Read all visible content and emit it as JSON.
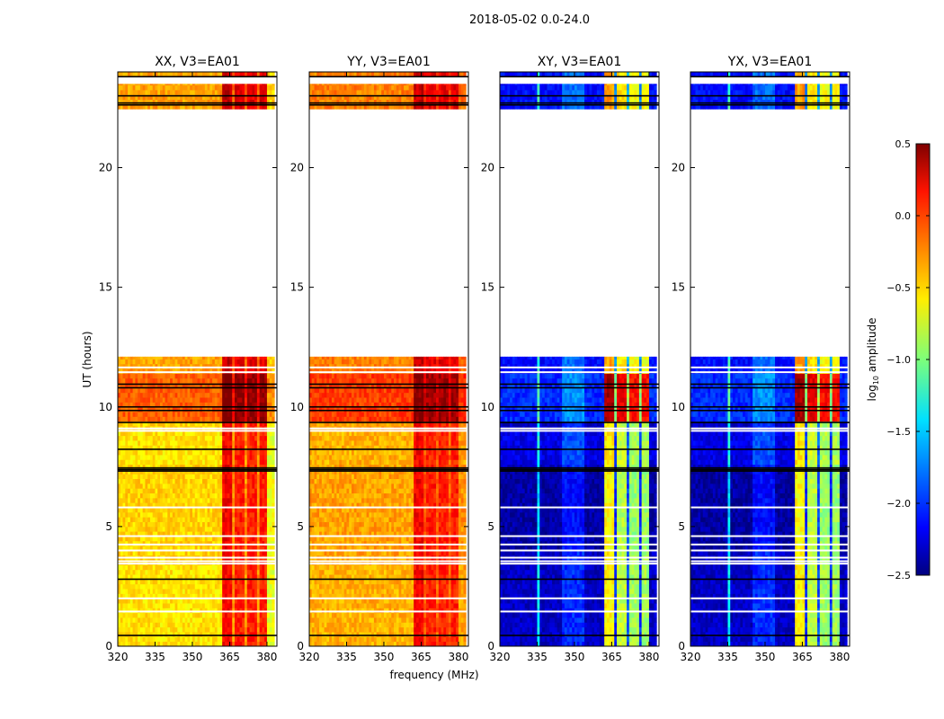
{
  "chart_data": {
    "type": "heatmap",
    "title": "2018-05-02 0.0-24.0",
    "xlabel": "frequency (MHz)",
    "ylabel": "UT (hours)",
    "xlim": [
      320,
      384
    ],
    "ylim": [
      0,
      24
    ],
    "xticks": [
      320,
      335,
      350,
      365,
      380
    ],
    "yticks": [
      0,
      5,
      10,
      15,
      20
    ],
    "colormap": "jet",
    "colorbar": {
      "label": "log",
      "label_sub": "10",
      "label_rest": " amplitude",
      "range": [
        -2.5,
        0.5
      ],
      "ticks": [
        "0.5",
        "0.0",
        "−0.5",
        "−1.0",
        "−1.5",
        "−2.0",
        "−2.5"
      ],
      "tick_values": [
        0.5,
        0.0,
        -0.5,
        -1.0,
        -1.5,
        -2.0,
        -2.5
      ]
    },
    "data_ut_ranges": [
      [
        0,
        12.1
      ],
      [
        22.45,
        23.5
      ],
      [
        23.8,
        24
      ]
    ],
    "flagged_ut_lines": [
      23.8,
      23.0,
      22.7,
      22.62,
      10.95,
      10.8,
      10.0,
      9.85,
      9.35,
      8.23,
      7.45,
      7.38,
      7.32,
      2.8,
      0.45
    ],
    "blank_ut_lines": [
      11.65,
      11.45,
      9.1,
      9.0,
      5.8,
      4.6,
      4.25,
      4.0,
      3.7,
      3.55,
      3.45,
      2.0,
      1.45
    ],
    "panels": [
      {
        "title": "XX, V3=EA01",
        "freq_profile": [
          [
            320,
            362,
            -0.5
          ],
          [
            362,
            366,
            0.15
          ],
          [
            366,
            367,
            -0.3
          ],
          [
            367,
            371,
            0.05
          ],
          [
            371,
            372,
            -0.3
          ],
          [
            372,
            376,
            0.05
          ],
          [
            376,
            377,
            -0.3
          ],
          [
            377,
            380,
            0.05
          ],
          [
            380,
            384,
            -0.65
          ]
        ],
        "time_offsets": [
          [
            0,
            3.3,
            -0.05,
            0
          ],
          [
            3.9,
            7.3,
            0,
            0
          ],
          [
            7.6,
            9.0,
            -0.05,
            0
          ],
          [
            9.3,
            11.2,
            0.35,
            0.3
          ],
          [
            11.2,
            12.1,
            0.15,
            0.1
          ],
          [
            22.45,
            24,
            0.15,
            0.1
          ]
        ]
      },
      {
        "title": "YY, V3=EA01",
        "freq_profile": [
          [
            320,
            362,
            -0.35
          ],
          [
            362,
            366,
            0.15
          ],
          [
            366,
            367,
            -0.1
          ],
          [
            367,
            371,
            0.05
          ],
          [
            371,
            372,
            -0.15
          ],
          [
            372,
            376,
            0.05
          ],
          [
            376,
            377,
            -0.15
          ],
          [
            377,
            380,
            0.05
          ],
          [
            380,
            384,
            -0.3
          ]
        ],
        "time_offsets": [
          [
            0,
            3.3,
            -0.05,
            0
          ],
          [
            3.9,
            7.3,
            0,
            0
          ],
          [
            7.6,
            9.0,
            -0.05,
            0
          ],
          [
            9.3,
            11.2,
            0.3,
            0.25
          ],
          [
            11.2,
            12.1,
            0.1,
            0.1
          ],
          [
            22.45,
            24,
            0.1,
            0.1
          ]
        ]
      },
      {
        "title": "XY, V3=EA01",
        "freq_profile": [
          [
            320,
            335,
            -2.3
          ],
          [
            335,
            336,
            -1.4
          ],
          [
            336,
            345,
            -2.3
          ],
          [
            345,
            354,
            -2.0
          ],
          [
            354,
            362,
            -2.3
          ],
          [
            362,
            366,
            -0.6
          ],
          [
            366,
            367,
            -2.0
          ],
          [
            367,
            371,
            -0.8
          ],
          [
            371,
            372,
            -1.9
          ],
          [
            372,
            376,
            -0.9
          ],
          [
            376,
            377,
            -2.0
          ],
          [
            377,
            380,
            -0.9
          ],
          [
            380,
            384,
            -2.3
          ]
        ],
        "time_offsets": [
          [
            0,
            3.3,
            0,
            0
          ],
          [
            3.9,
            7.3,
            -0.1,
            0
          ],
          [
            7.6,
            9.0,
            0.1,
            0
          ],
          [
            9.3,
            11.2,
            0.3,
            0.9
          ],
          [
            11.2,
            12.1,
            0.2,
            0.2
          ],
          [
            22.45,
            24,
            0.2,
            0.2
          ]
        ]
      },
      {
        "title": "YX, V3=EA01",
        "freq_profile": [
          [
            320,
            335,
            -2.3
          ],
          [
            335,
            336,
            -1.4
          ],
          [
            336,
            345,
            -2.3
          ],
          [
            345,
            354,
            -2.0
          ],
          [
            354,
            362,
            -2.3
          ],
          [
            362,
            366,
            -0.6
          ],
          [
            366,
            367,
            -2.0
          ],
          [
            367,
            371,
            -0.8
          ],
          [
            371,
            372,
            -1.9
          ],
          [
            372,
            376,
            -0.9
          ],
          [
            376,
            377,
            -2.0
          ],
          [
            377,
            380,
            -0.9
          ],
          [
            380,
            384,
            -2.3
          ]
        ],
        "time_offsets": [
          [
            0,
            3.3,
            0,
            0
          ],
          [
            3.9,
            7.3,
            -0.1,
            0
          ],
          [
            7.6,
            9.0,
            0.1,
            0
          ],
          [
            9.3,
            11.2,
            0.3,
            0.9
          ],
          [
            11.2,
            12.1,
            0.2,
            0.2
          ],
          [
            22.45,
            24,
            0.2,
            0.2
          ]
        ]
      }
    ]
  }
}
